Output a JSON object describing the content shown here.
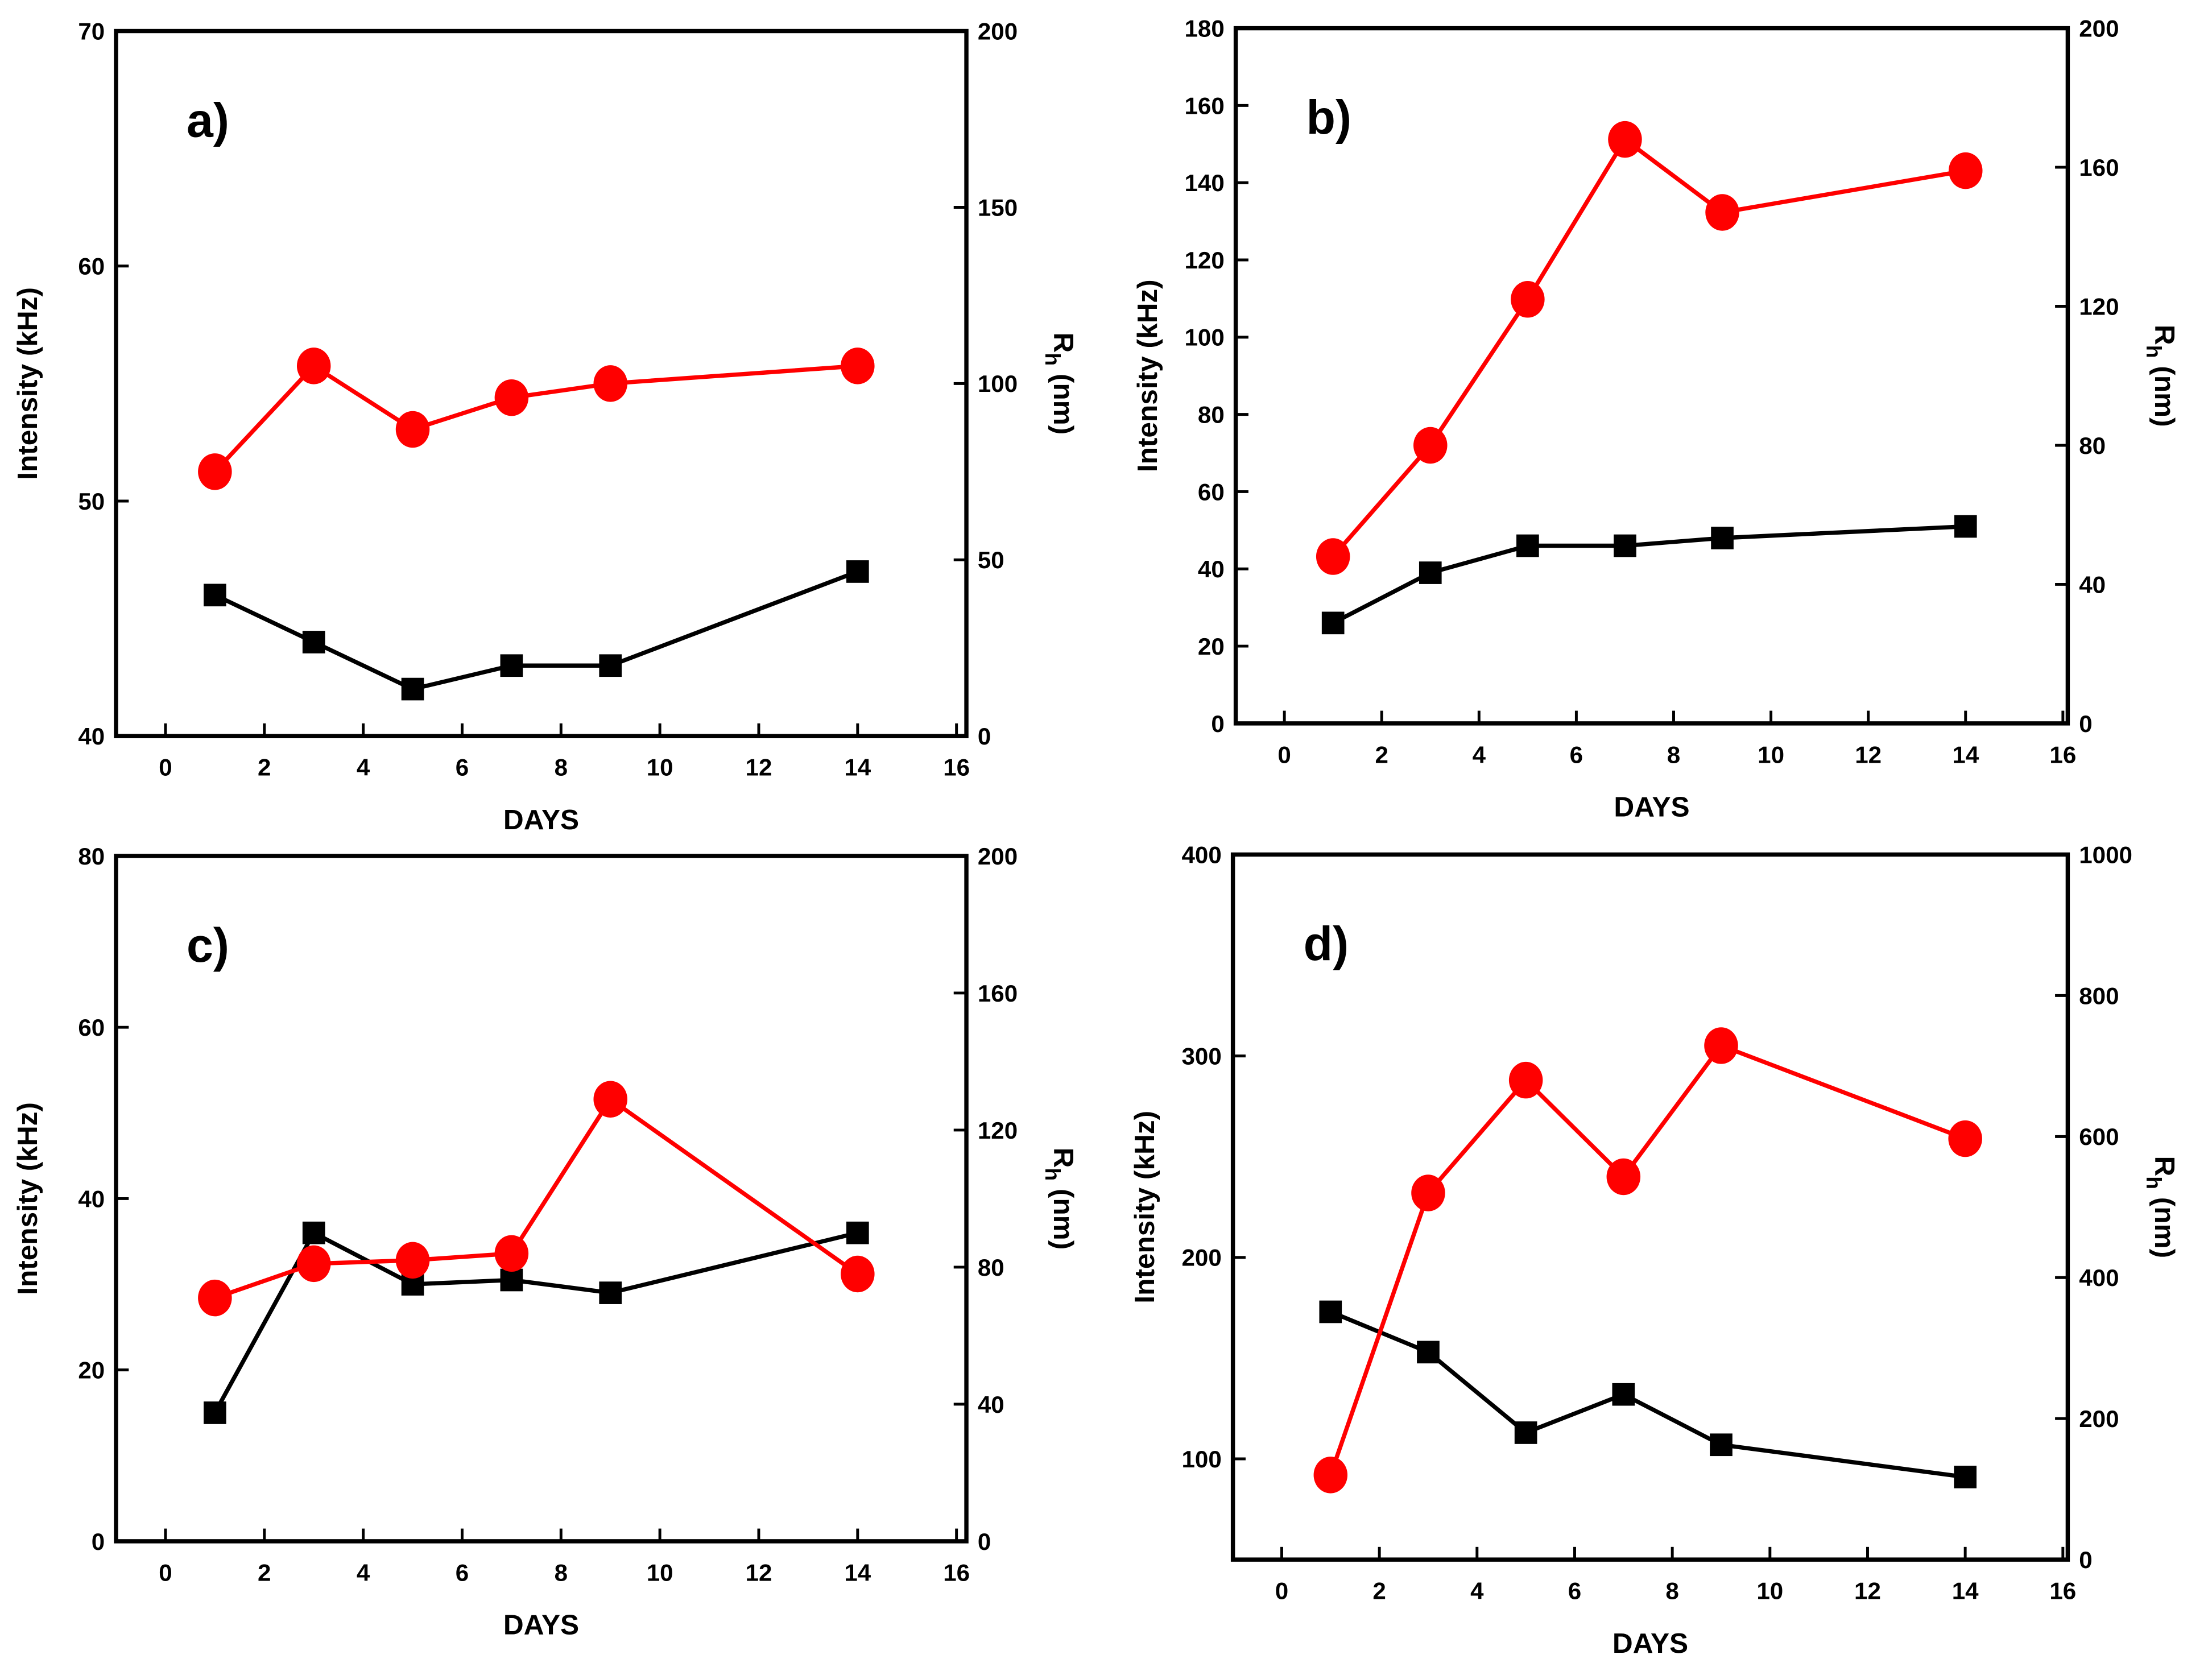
{
  "colors": {
    "intensity": "#000000",
    "rh": "#ff0000"
  },
  "chart_data": [
    {
      "type": "line",
      "panel_label": "a)",
      "xlabel": "DAYS",
      "ylabel": "Intensity (kHz)",
      "y2label": {
        "main": "R",
        "sub": "h",
        "suffix": " (nm)"
      },
      "xlim": [
        -1,
        16.2
      ],
      "xticks": [
        0,
        2,
        4,
        6,
        8,
        10,
        12,
        14,
        16
      ],
      "ylim": [
        40,
        70
      ],
      "yticks": [
        40,
        50,
        60,
        70
      ],
      "y2lim": [
        0,
        200
      ],
      "y2ticks": [
        0,
        50,
        100,
        150,
        200
      ],
      "x": [
        1,
        3,
        5,
        7,
        9,
        14
      ],
      "series": [
        {
          "name": "Intensity",
          "axis": "left",
          "marker": "square",
          "values": [
            46,
            44,
            42,
            43,
            43,
            47
          ]
        },
        {
          "name": "Rh",
          "axis": "right",
          "marker": "circle",
          "values": [
            75,
            105,
            87,
            96,
            100,
            105
          ]
        }
      ]
    },
    {
      "type": "line",
      "panel_label": "b)",
      "xlabel": "DAYS",
      "ylabel": "Intensity (kHz)",
      "y2label": {
        "main": "R",
        "sub": "h",
        "suffix": " (nm)"
      },
      "xlim": [
        -1,
        16.1
      ],
      "xticks": [
        0,
        2,
        4,
        6,
        8,
        10,
        12,
        14,
        16
      ],
      "ylim": [
        0,
        180
      ],
      "yticks": [
        0,
        20,
        40,
        60,
        80,
        100,
        120,
        140,
        160,
        180
      ],
      "y2lim": [
        0,
        200
      ],
      "y2ticks": [
        0,
        40,
        80,
        120,
        160,
        200
      ],
      "x": [
        1,
        3,
        5,
        7,
        9,
        14
      ],
      "series": [
        {
          "name": "Intensity",
          "axis": "left",
          "marker": "square",
          "values": [
            26,
            39,
            46,
            46,
            48,
            51
          ]
        },
        {
          "name": "Rh",
          "axis": "right",
          "marker": "circle",
          "values": [
            48,
            80,
            122,
            168,
            147,
            159
          ]
        }
      ]
    },
    {
      "type": "line",
      "panel_label": "c)",
      "xlabel": "DAYS",
      "ylabel": "Intensity (kHz)",
      "y2label": {
        "main": "R",
        "sub": "h",
        "suffix": " (nm)"
      },
      "xlim": [
        -1,
        16.2
      ],
      "xticks": [
        0,
        2,
        4,
        6,
        8,
        10,
        12,
        14,
        16
      ],
      "ylim": [
        0,
        80
      ],
      "yticks": [
        0,
        20,
        40,
        60,
        80
      ],
      "y2lim": [
        0,
        200
      ],
      "y2ticks": [
        0,
        40,
        80,
        120,
        160,
        200
      ],
      "x": [
        1,
        3,
        5,
        7,
        9,
        14
      ],
      "series": [
        {
          "name": "Intensity",
          "axis": "left",
          "marker": "square",
          "values": [
            15,
            36,
            30,
            30.5,
            29,
            36
          ]
        },
        {
          "name": "Rh",
          "axis": "right",
          "marker": "circle",
          "values": [
            71,
            81,
            82,
            84,
            129,
            78
          ]
        }
      ]
    },
    {
      "type": "line",
      "panel_label": "d)",
      "xlabel": "DAYS",
      "ylabel": "Intensity (kHz)",
      "y2label": {
        "main": "R",
        "sub": "h",
        "suffix": " (nm)"
      },
      "xlim": [
        -1,
        16.1
      ],
      "xticks": [
        0,
        2,
        4,
        6,
        8,
        10,
        12,
        14,
        16
      ],
      "ylim": [
        50,
        400
      ],
      "yticks": [
        100,
        200,
        300,
        400
      ],
      "y2lim": [
        0,
        1000
      ],
      "y2ticks": [
        0,
        200,
        400,
        600,
        800,
        1000
      ],
      "x": [
        1,
        3,
        5,
        7,
        9,
        14
      ],
      "series": [
        {
          "name": "Intensity",
          "axis": "left",
          "marker": "square",
          "values": [
            173,
            153,
            113,
            132,
            107,
            91
          ]
        },
        {
          "name": "Rh",
          "axis": "right",
          "marker": "circle",
          "values": [
            120,
            520,
            680,
            543,
            729,
            597
          ]
        }
      ]
    }
  ]
}
